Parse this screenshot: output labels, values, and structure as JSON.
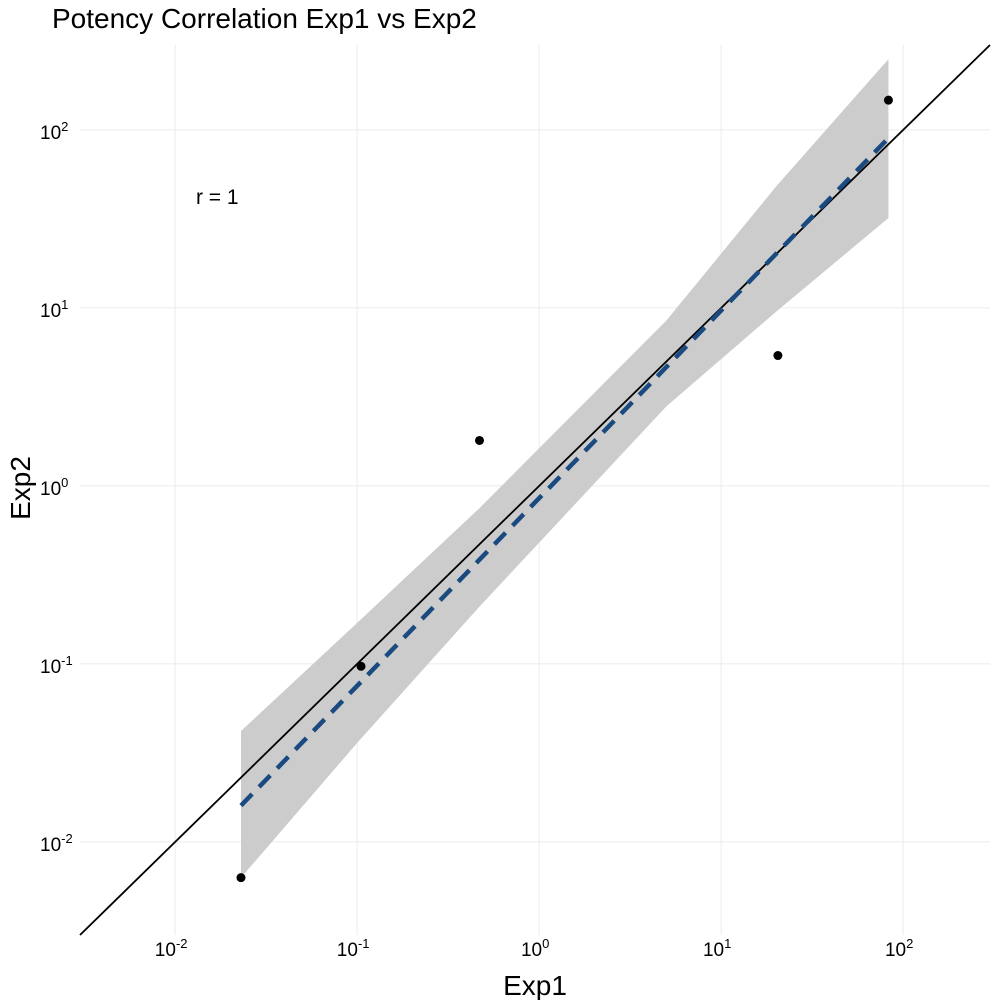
{
  "chart_data": {
    "type": "scatter",
    "title": "Potency Correlation Exp1 vs Exp2",
    "xlabel": "Exp1",
    "ylabel": "Exp2",
    "x_scale": "log10",
    "y_scale": "log10",
    "xlim": [
      0.003,
      300
    ],
    "ylim": [
      0.003,
      300
    ],
    "x_ticks": [
      {
        "base": "10",
        "exp": "-2",
        "value": 0.01
      },
      {
        "base": "10",
        "exp": "-1",
        "value": 0.1
      },
      {
        "base": "10",
        "exp": "0",
        "value": 1
      },
      {
        "base": "10",
        "exp": "1",
        "value": 10
      },
      {
        "base": "10",
        "exp": "2",
        "value": 100
      }
    ],
    "y_ticks": [
      {
        "base": "10",
        "exp": "-2",
        "value": 0.01
      },
      {
        "base": "10",
        "exp": "-1",
        "value": 0.1
      },
      {
        "base": "10",
        "exp": "0",
        "value": 1
      },
      {
        "base": "10",
        "exp": "1",
        "value": 10
      },
      {
        "base": "10",
        "exp": "2",
        "value": 100
      }
    ],
    "grid": true,
    "points": [
      {
        "x": 0.023,
        "y": 0.0063
      },
      {
        "x": 0.105,
        "y": 0.097
      },
      {
        "x": 0.47,
        "y": 1.8
      },
      {
        "x": 20.5,
        "y": 5.4
      },
      {
        "x": 83,
        "y": 147
      }
    ],
    "identity_line": {
      "from": 0.003,
      "to": 300,
      "color": "#000000"
    },
    "fit_line": {
      "x": [
        0.023,
        83
      ],
      "y": [
        0.016,
        90
      ],
      "color": "#1a4a80",
      "style": "dashed"
    },
    "confidence_band": {
      "color": "#cccccc",
      "x": [
        0.023,
        0.1,
        0.47,
        5,
        20,
        83
      ],
      "upper": [
        0.042,
        0.17,
        0.75,
        8.5,
        48,
        250
      ],
      "lower": [
        0.0063,
        0.036,
        0.21,
        2.8,
        9.5,
        32
      ]
    },
    "annotations": [
      {
        "text": "r = 1",
        "x": 0.023,
        "y": 42
      }
    ]
  }
}
